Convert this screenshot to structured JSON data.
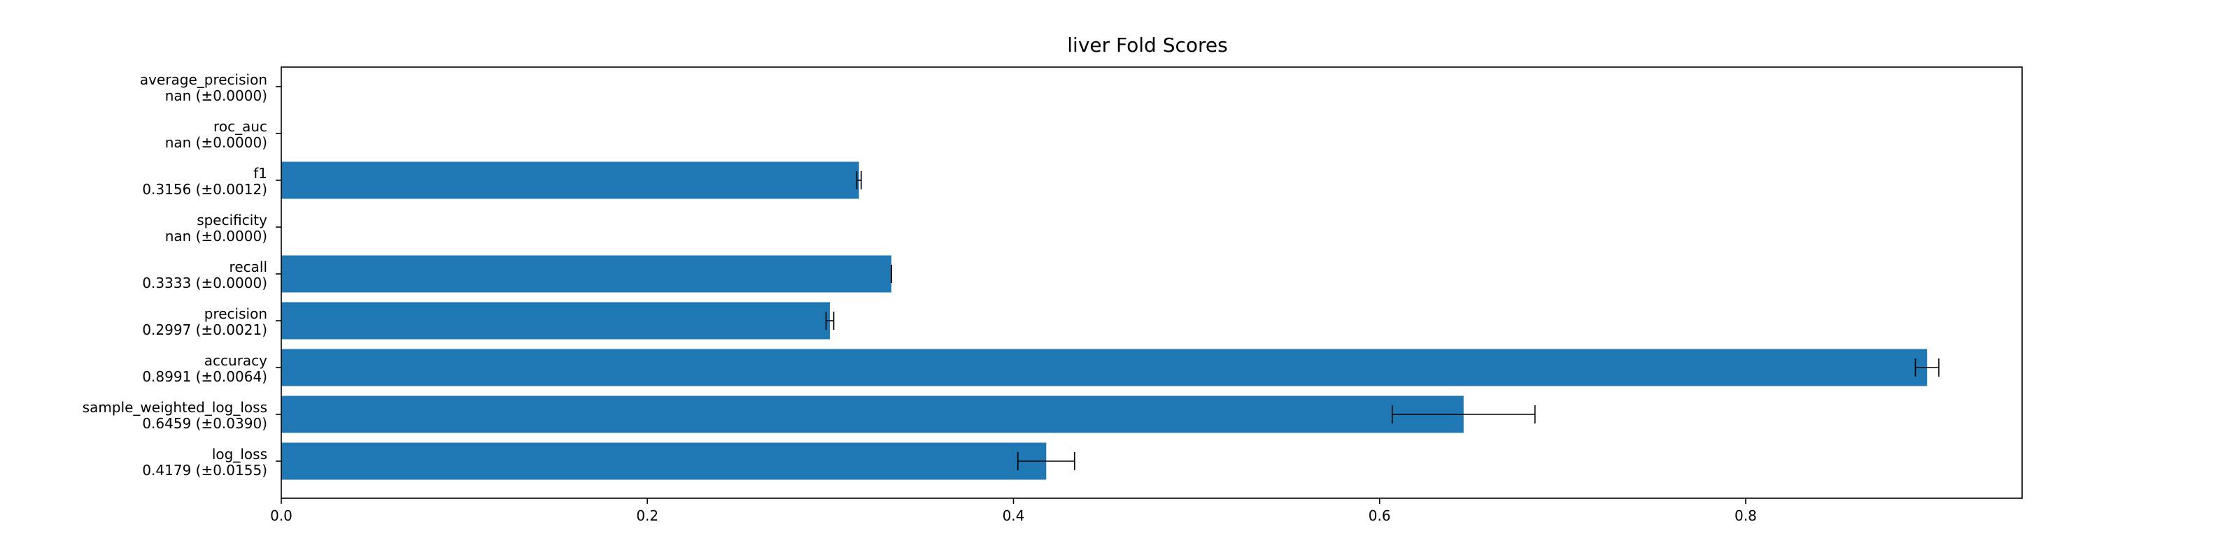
{
  "chart_data": {
    "type": "bar",
    "orientation": "horizontal",
    "title": "liver Fold Scores",
    "xlabel": "",
    "ylabel": "",
    "xlim": [
      0,
      0.951
    ],
    "xticks": [
      {
        "value": 0.0,
        "label": "0.0"
      },
      {
        "value": 0.2,
        "label": "0.2"
      },
      {
        "value": 0.4,
        "label": "0.4"
      },
      {
        "value": 0.6,
        "label": "0.6"
      },
      {
        "value": 0.8,
        "label": "0.8"
      }
    ],
    "grid": false,
    "bar_color": "#1f77b4",
    "error_color": "#000000",
    "categories": [
      {
        "name": "log_loss",
        "score_text": "0.4179 (±0.0155)",
        "value": 0.4179,
        "error": 0.0155
      },
      {
        "name": "sample_weighted_log_loss",
        "score_text": "0.6459 (±0.0390)",
        "value": 0.6459,
        "error": 0.039
      },
      {
        "name": "accuracy",
        "score_text": "0.8991 (±0.0064)",
        "value": 0.8991,
        "error": 0.0064
      },
      {
        "name": "precision",
        "score_text": "0.2997 (±0.0021)",
        "value": 0.2997,
        "error": 0.0021
      },
      {
        "name": "recall",
        "score_text": "0.3333 (±0.0000)",
        "value": 0.3333,
        "error": 0.0
      },
      {
        "name": "specificity",
        "score_text": "nan (±0.0000)",
        "value": null,
        "error": 0.0
      },
      {
        "name": "f1",
        "score_text": "0.3156 (±0.0012)",
        "value": 0.3156,
        "error": 0.0012
      },
      {
        "name": "roc_auc",
        "score_text": "nan (±0.0000)",
        "value": null,
        "error": 0.0
      },
      {
        "name": "average_precision",
        "score_text": "nan (±0.0000)",
        "value": null,
        "error": 0.0
      }
    ]
  }
}
